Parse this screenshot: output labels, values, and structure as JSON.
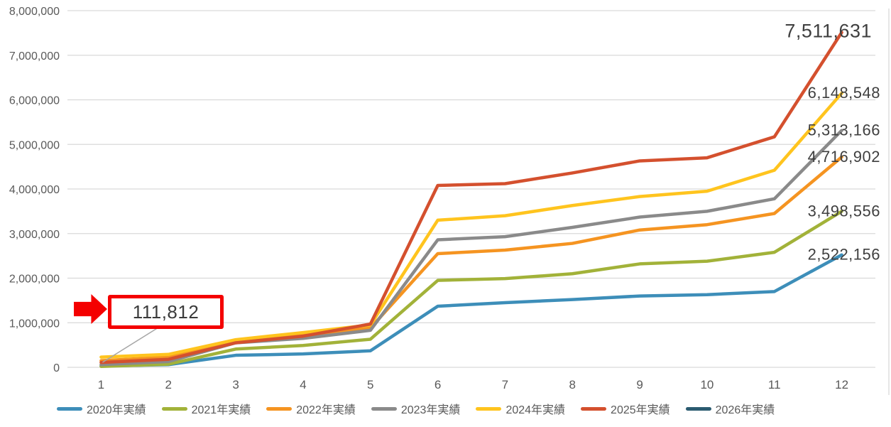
{
  "chart_data": {
    "type": "line",
    "title": "",
    "xlabel": "",
    "ylabel": "",
    "grid": true,
    "legend_position": "bottom",
    "x_categories": [
      "1",
      "2",
      "3",
      "4",
      "5",
      "6",
      "7",
      "8",
      "9",
      "10",
      "11",
      "12"
    ],
    "y_axis": {
      "min": 0,
      "max": 8000000,
      "tick_interval": 1000000,
      "tick_labels": [
        "0",
        "1,000,000",
        "2,000,000",
        "3,000,000",
        "4,000,000",
        "5,000,000",
        "6,000,000",
        "7,000,000",
        "8,000,000"
      ]
    },
    "series": [
      {
        "name": "2020年実績",
        "color": "#3D8EB9",
        "end_label": "2,522,156",
        "emphasized": false,
        "values": [
          30000,
          60000,
          270000,
          300000,
          370000,
          1370000,
          1450000,
          1520000,
          1600000,
          1630000,
          1700000,
          2522156
        ]
      },
      {
        "name": "2021年実績",
        "color": "#A2B239",
        "end_label": "3,498,556",
        "emphasized": false,
        "values": [
          20000,
          70000,
          410000,
          490000,
          630000,
          1950000,
          1990000,
          2100000,
          2320000,
          2380000,
          2580000,
          3498556
        ]
      },
      {
        "name": "2022年実績",
        "color": "#F59421",
        "end_label": "4,716,902",
        "emphasized": false,
        "values": [
          150000,
          230000,
          600000,
          720000,
          880000,
          2550000,
          2630000,
          2780000,
          3080000,
          3200000,
          3450000,
          4716902
        ]
      },
      {
        "name": "2023年実績",
        "color": "#8A8A8A",
        "end_label": "5,313,166",
        "emphasized": false,
        "values": [
          60000,
          130000,
          550000,
          650000,
          830000,
          2860000,
          2930000,
          3140000,
          3370000,
          3500000,
          3780000,
          5313166
        ]
      },
      {
        "name": "2024年実績",
        "color": "#FFC41E",
        "end_label": "6,148,548",
        "emphasized": false,
        "values": [
          230000,
          290000,
          620000,
          780000,
          950000,
          3300000,
          3400000,
          3630000,
          3830000,
          3950000,
          4420000,
          6148548
        ]
      },
      {
        "name": "2025年実績",
        "color": "#D4502E",
        "end_label": "7,511,631",
        "emphasized": true,
        "values": [
          110000,
          180000,
          550000,
          700000,
          970000,
          4080000,
          4120000,
          4360000,
          4630000,
          4700000,
          5170000,
          7511631
        ]
      },
      {
        "name": "2026年実績",
        "color": "#2B5B70",
        "end_label": null,
        "emphasized": false,
        "values": [
          111812
        ]
      }
    ],
    "callout": {
      "text": "111,812",
      "value": 111812,
      "points_to_month": "1"
    },
    "colors": {
      "background": "#FFFFFF",
      "gridline": "#D9D9D9",
      "axis_text": "#595959",
      "data_label": "#3F3F3F",
      "callout_red": "#F40000",
      "leader": "#A6A6A6"
    }
  }
}
